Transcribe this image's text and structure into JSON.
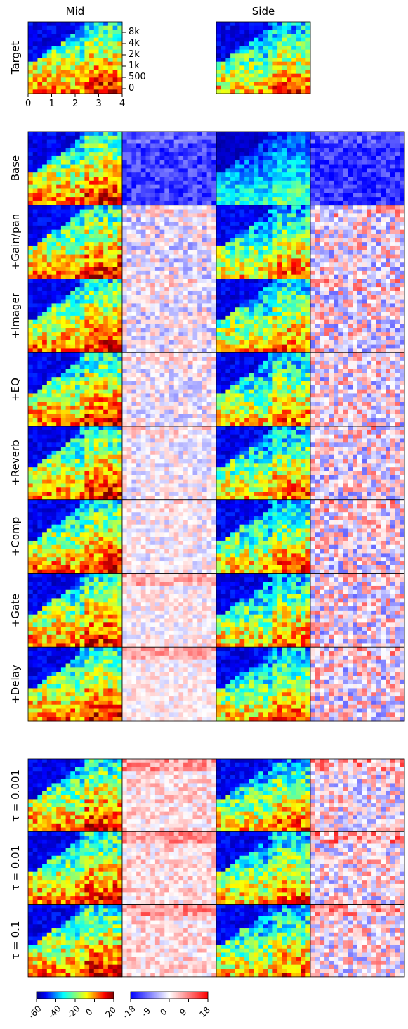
{
  "columns": [
    "Mid",
    "Side"
  ],
  "target_label": "Target",
  "section1_rows": [
    "Base",
    "+Gain/pan",
    "+Imager",
    "+EQ",
    "+Reverb",
    "+Comp",
    "+Gate",
    "+Delay"
  ],
  "section2_rows": [
    "τ = 0.001",
    "τ = 0.01",
    "τ = 0.1"
  ],
  "chart_data": {
    "type": "heatmap",
    "x_axis": {
      "ticks": [
        0,
        1,
        2,
        3,
        4
      ]
    },
    "y_axis": {
      "ticks": [
        "0",
        "500",
        "1k",
        "2k",
        "4k",
        "8k"
      ]
    },
    "panel_kinds": [
      "spectrogram",
      "error",
      "spectrogram",
      "error"
    ],
    "colorbars": [
      {
        "name": "spectrogram",
        "colormap": "jet",
        "ticks": [
          "-60",
          "-40",
          "-20",
          "0",
          "20"
        ],
        "range": [
          -60,
          20
        ]
      },
      {
        "name": "error",
        "colormap": "bwr",
        "ticks": [
          "-18",
          "-9",
          "0",
          "9",
          "18"
        ],
        "range": [
          -18,
          18
        ]
      }
    ]
  }
}
